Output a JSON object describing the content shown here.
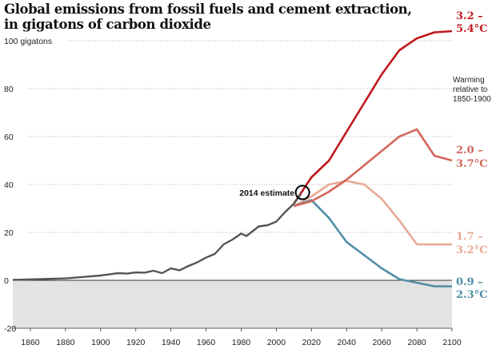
{
  "chart_data": {
    "type": "line",
    "title": "Global emissions from fossil fuels and cement extraction, in gigatons of carbon dioxide",
    "title_lines": [
      "Global emissions from fossil fuels and cement extraction,",
      "in gigatons of carbon dioxide"
    ],
    "ylabel_top": "100 gigatons",
    "xlim": [
      1850,
      2100
    ],
    "ylim": [
      -20,
      105
    ],
    "xticks": [
      1860,
      1880,
      1900,
      1920,
      1940,
      1960,
      1980,
      2000,
      2020,
      2040,
      2060,
      2080,
      2100
    ],
    "yticks": [
      -20,
      0,
      20,
      40,
      60,
      80,
      100
    ],
    "grid": "horizontal dotted",
    "legend_note": [
      "Warming",
      "relative to",
      "1850-1900"
    ],
    "annotation": {
      "text": "2014 estimate",
      "x": 2014,
      "y": 37
    },
    "historical": {
      "color": "#555555",
      "x": [
        1850,
        1860,
        1870,
        1880,
        1890,
        1900,
        1910,
        1915,
        1920,
        1925,
        1930,
        1935,
        1940,
        1945,
        1950,
        1955,
        1960,
        1965,
        1970,
        1975,
        1980,
        1983,
        1990,
        1995,
        2000,
        2005,
        2010,
        2014
      ],
      "y": [
        0.2,
        0.4,
        0.6,
        0.8,
        1.4,
        2,
        3,
        2.8,
        3.3,
        3.2,
        4,
        3,
        5,
        4.2,
        6,
        7.5,
        9.5,
        11,
        15,
        17,
        19.5,
        18.5,
        22.5,
        23,
        24.5,
        28.5,
        32,
        36
      ]
    },
    "series": [
      {
        "name": "3.2 – 5.4°C",
        "label_lines": [
          "3.2 –",
          "5.4°C"
        ],
        "color": "#c0181d",
        "x": [
          2010,
          2020,
          2030,
          2040,
          2050,
          2060,
          2070,
          2080,
          2090,
          2100
        ],
        "y": [
          32,
          43,
          50,
          62,
          74,
          86,
          96,
          101,
          103.5,
          104
        ]
      },
      {
        "name": "2.0 – 3.7°C",
        "label_lines": [
          "2.0 –",
          "3.7°C"
        ],
        "color": "#d4665a",
        "x": [
          2010,
          2020,
          2030,
          2040,
          2050,
          2060,
          2070,
          2080,
          2090,
          2100
        ],
        "y": [
          31,
          33,
          37,
          42,
          48,
          54,
          60,
          63,
          52,
          50
        ]
      },
      {
        "name": "1.7 – 3.2°C",
        "label_lines": [
          "1.7 –",
          "3.2°C"
        ],
        "color": "#e8a996",
        "x": [
          2010,
          2020,
          2030,
          2040,
          2050,
          2060,
          2070,
          2080,
          2090,
          2100
        ],
        "y": [
          31,
          35,
          40,
          41.5,
          40,
          34,
          25,
          15,
          15,
          15
        ]
      },
      {
        "name": "0.9 – 2.3°C",
        "label_lines": [
          "0.9 –",
          "2.3°C"
        ],
        "color": "#4f8ea6",
        "x": [
          2010,
          2020,
          2030,
          2040,
          2050,
          2060,
          2070,
          2080,
          2090,
          2100
        ],
        "y": [
          31,
          33.5,
          26,
          16,
          10.5,
          5,
          0.5,
          -1,
          -2.5,
          -2.5
        ]
      }
    ]
  }
}
